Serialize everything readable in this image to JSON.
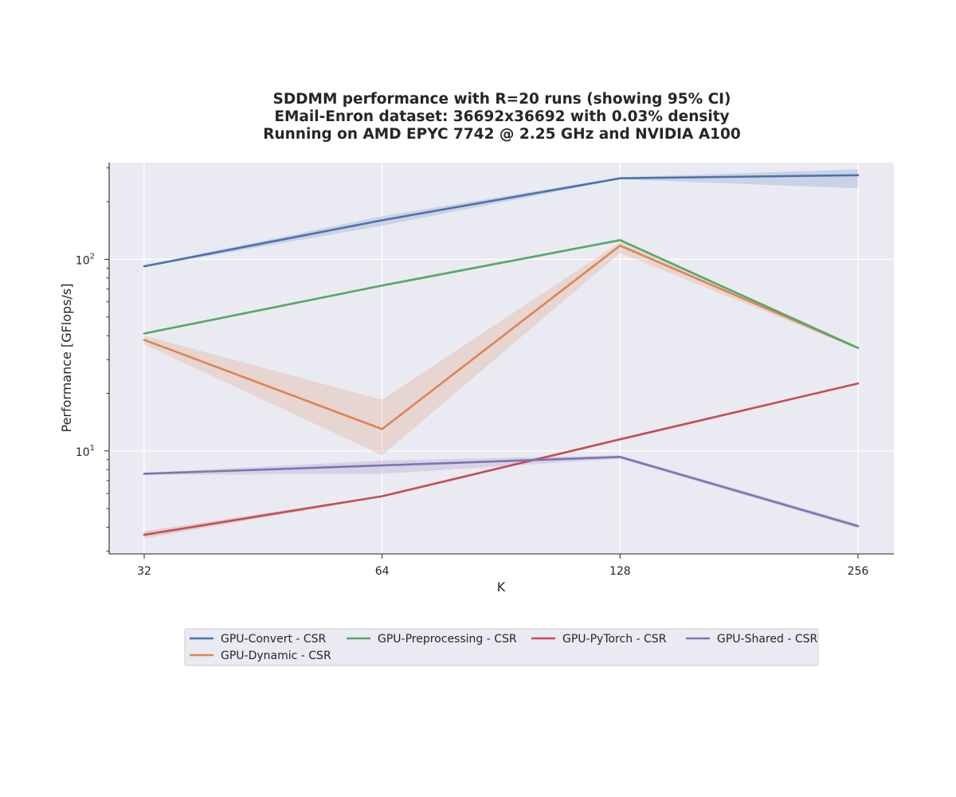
{
  "chart_data": {
    "type": "line",
    "title": [
      "SDDMM performance with R=20 runs (showing 95% CI)",
      "EMail-Enron dataset: 36692x36692 with 0.03% density",
      "Running on AMD EPYC 7742 @ 2.25 GHz and NVIDIA A100"
    ],
    "xlabel": "K",
    "ylabel": "Performance [GFlops/s]",
    "x_scale": "log2",
    "y_scale": "log10",
    "x": [
      32,
      64,
      128,
      256
    ],
    "x_tick_labels": [
      "32",
      "64",
      "128",
      "256"
    ],
    "ylim": [
      2.9,
      320
    ],
    "y_major_ticks": [
      {
        "value": 10,
        "base": "10",
        "exp": "1"
      },
      {
        "value": 100,
        "base": "10",
        "exp": "2"
      }
    ],
    "grid": true,
    "legend_position": "bottom-center",
    "confidence_interval": "95%",
    "series": [
      {
        "name": "GPU-Convert - CSR",
        "color": "#4c72b0",
        "values": [
          92,
          160,
          265,
          275
        ],
        "ci_low": [
          91,
          150,
          262,
          235
        ],
        "ci_high": [
          93,
          168,
          268,
          295
        ]
      },
      {
        "name": "GPU-Dynamic - CSR",
        "color": "#dd8452",
        "values": [
          38,
          13,
          118,
          34.5
        ],
        "ci_low": [
          36,
          9.5,
          108,
          34
        ],
        "ci_high": [
          40,
          18.5,
          123,
          35
        ]
      },
      {
        "name": "GPU-Preprocessing - CSR",
        "color": "#55a868",
        "values": [
          41,
          73,
          126,
          34.5
        ],
        "ci_low": [
          40.5,
          72,
          124,
          34.2
        ],
        "ci_high": [
          41.5,
          74,
          128,
          34.8
        ]
      },
      {
        "name": "GPU-PyTorch - CSR",
        "color": "#c44e52",
        "values": [
          3.65,
          5.8,
          11.5,
          22.5
        ],
        "ci_low": [
          3.5,
          5.75,
          11.4,
          22.3
        ],
        "ci_high": [
          3.8,
          5.85,
          11.6,
          22.7
        ]
      },
      {
        "name": "GPU-Shared - CSR",
        "color": "#8172b3",
        "values": [
          7.6,
          8.4,
          9.3,
          4.05
        ],
        "ci_low": [
          7.5,
          7.6,
          9.1,
          3.95
        ],
        "ci_high": [
          7.7,
          8.9,
          9.5,
          4.15
        ]
      }
    ]
  },
  "legend_order": [
    0,
    2,
    3,
    4,
    1
  ]
}
